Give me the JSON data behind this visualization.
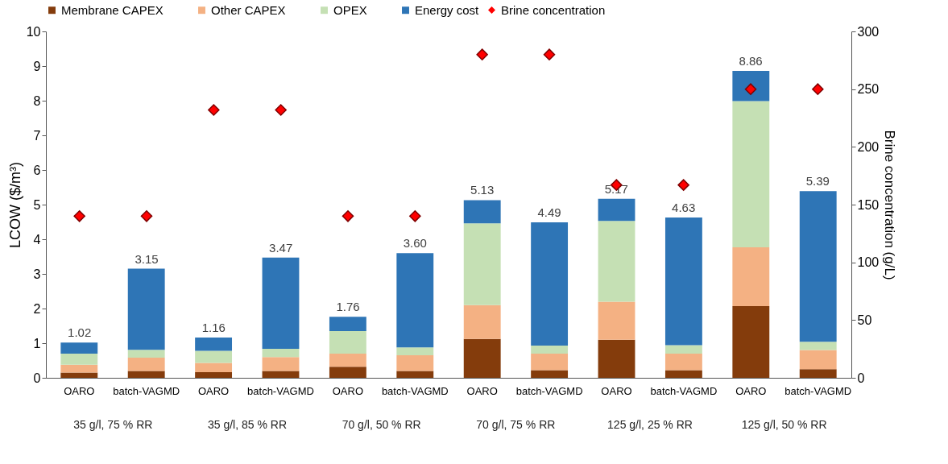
{
  "chart_data": {
    "type": "bar",
    "stacked": true,
    "categories": [
      "OARO",
      "batch-VAGMD",
      "OARO",
      "batch-VAGMD",
      "OARO",
      "batch-VAGMD",
      "OARO",
      "batch-VAGMD",
      "OARO",
      "batch-VAGMD",
      "OARO",
      "batch-VAGMD"
    ],
    "ylabel": "LCOW   ($/m³)",
    "y2label": "Brine concentration (g/L)",
    "ylim": [
      0,
      10
    ],
    "yticks": [
      0,
      1,
      2,
      3,
      4,
      5,
      6,
      7,
      8,
      9,
      10
    ],
    "y2lim": [
      0,
      300
    ],
    "y2ticks": [
      0,
      50,
      100,
      150,
      200,
      250,
      300
    ],
    "series": [
      {
        "name": "Membrane CAPEX",
        "color": "#843c0c",
        "values": [
          0.15,
          0.2,
          0.16,
          0.2,
          0.32,
          0.2,
          1.12,
          0.22,
          1.1,
          0.22,
          2.07,
          0.25
        ]
      },
      {
        "name": "Other CAPEX",
        "color": "#f4b183",
        "values": [
          0.23,
          0.38,
          0.27,
          0.4,
          0.38,
          0.45,
          0.98,
          0.48,
          1.1,
          0.48,
          1.7,
          0.55
        ]
      },
      {
        "name": "OPEX",
        "color": "#c5e0b4",
        "values": [
          0.32,
          0.23,
          0.35,
          0.24,
          0.65,
          0.23,
          2.36,
          0.23,
          2.33,
          0.24,
          4.22,
          0.24
        ]
      },
      {
        "name": "Energy cost",
        "color": "#2e75b6",
        "values": [
          0.32,
          2.34,
          0.38,
          2.63,
          0.41,
          2.72,
          0.67,
          3.56,
          0.64,
          3.69,
          0.87,
          4.35
        ]
      },
      {
        "name": "Brine concentration",
        "color": "#ff0000",
        "type": "scatter",
        "axis": "y2",
        "marker": "diamond",
        "values": [
          140,
          140,
          232,
          232,
          140,
          140,
          280,
          280,
          167,
          167,
          250,
          250
        ]
      }
    ],
    "totals": [
      "1.02",
      "3.15",
      "1.16",
      "3.47",
      "1.76",
      "3.60",
      "5.13",
      "4.49",
      "5.17",
      "4.63",
      "8.86",
      "5.39"
    ],
    "annotations": [
      "35 g/l, 75 % RR",
      "35 g/l, 85 % RR",
      "70 g/l, 50 % RR",
      "70 g/l, 75 % RR",
      "125 g/l, 25 % RR",
      "125 g/l, 50 % RR"
    ],
    "legend": "top",
    "grid": false
  }
}
